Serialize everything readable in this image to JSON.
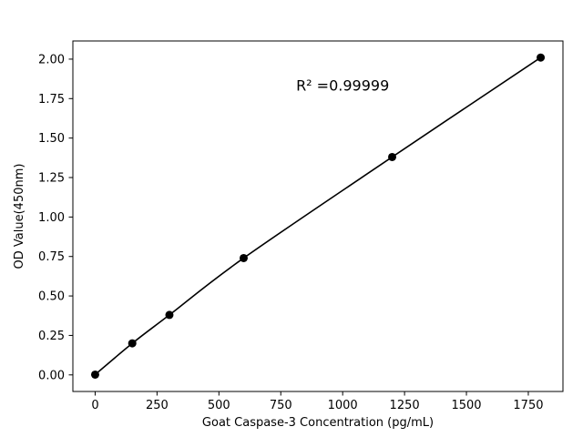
{
  "chart_data": {
    "type": "line",
    "title": "",
    "xlabel": "Goat Caspase-3 Concentration (pg/mL)",
    "ylabel": "OD Value(450nm)",
    "x": [
      0,
      150,
      300,
      600,
      1200,
      1800
    ],
    "y": [
      0.002,
      0.2,
      0.38,
      0.74,
      1.38,
      2.01
    ],
    "xlim": [
      -90,
      1890
    ],
    "ylim": [
      -0.105,
      2.115
    ],
    "xticks": [
      0,
      250,
      500,
      750,
      1000,
      1250,
      1500,
      1750
    ],
    "xtick_labels": [
      "0",
      "250",
      "500",
      "750",
      "1000",
      "1250",
      "1500",
      "1750"
    ],
    "yticks": [
      0.0,
      0.25,
      0.5,
      0.75,
      1.0,
      1.25,
      1.5,
      1.75,
      2.0
    ],
    "ytick_labels": [
      "0.00",
      "0.25",
      "0.50",
      "0.75",
      "1.00",
      "1.25",
      "1.50",
      "1.75",
      "2.00"
    ],
    "annotation": {
      "text": "R² =0.99999",
      "x": 1000,
      "y": 1.8
    },
    "line_color": "#000000",
    "marker_color": "#000000",
    "marker": "o",
    "marker_radius": 4.5,
    "background_color": "#ffffff",
    "grid": false,
    "legend": null
  }
}
